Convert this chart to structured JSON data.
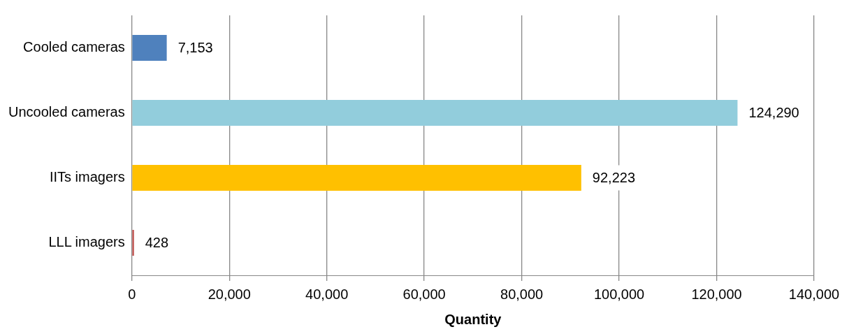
{
  "chart_data": {
    "type": "bar",
    "orientation": "horizontal",
    "xlabel": "Quantity",
    "categories": [
      "Cooled cameras",
      "Uncooled cameras",
      "IITs imagers",
      "LLL imagers"
    ],
    "values": [
      7153,
      124290,
      92223,
      428
    ],
    "value_labels": [
      "7,153",
      "124,290",
      "92,223",
      "428"
    ],
    "colors": [
      "#4f81bd",
      "#92cddc",
      "#ffc000",
      "#c0504d"
    ],
    "xlim": [
      0,
      140000
    ],
    "xticks": [
      0,
      {
        "value": 20000,
        "label": "20,000"
      },
      {
        "value": 40000,
        "label": "40,000"
      },
      {
        "value": 60000,
        "label": "60,000"
      },
      {
        "value": 80000,
        "label": "80,000"
      },
      {
        "value": 100000,
        "label": "100,000"
      },
      {
        "value": 120000,
        "label": "120,000"
      },
      {
        "value": 140000,
        "label": "140,000"
      }
    ],
    "grid": "x",
    "legend": false
  }
}
